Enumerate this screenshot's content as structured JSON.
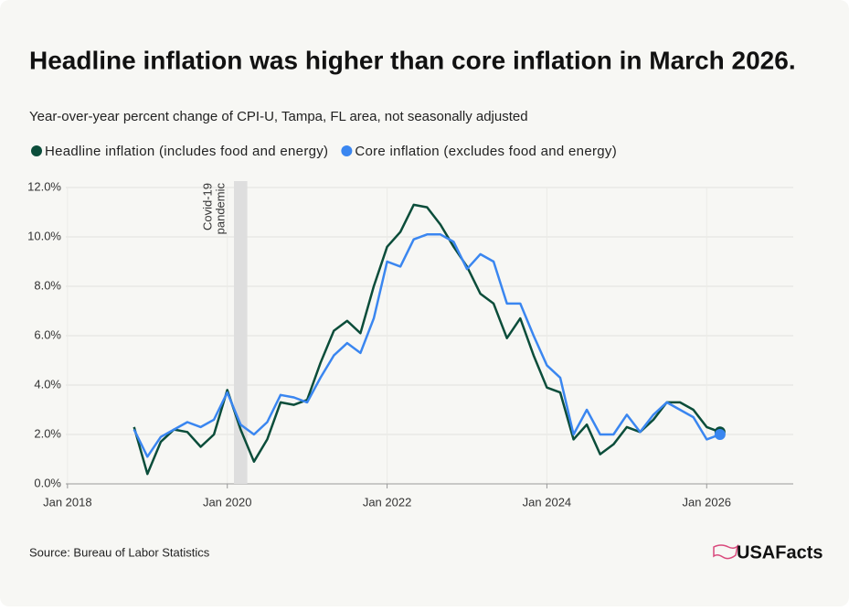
{
  "chart_data": {
    "type": "line",
    "title": "Headline inflation was higher than core inflation in March 2026.",
    "subtitle": "Year-over-year percent change of CPI-U, Tampa, FL area, not seasonally adjusted",
    "source": "Source: Bureau of Labor Statistics",
    "brand": "USAFacts",
    "annotation": {
      "lines": [
        "Covid-19",
        "pandemic"
      ],
      "start": "2020-02",
      "end": "2020-04"
    },
    "x": [
      "2018-11",
      "2019-01",
      "2019-03",
      "2019-05",
      "2019-07",
      "2019-09",
      "2019-11",
      "2020-01",
      "2020-03",
      "2020-05",
      "2020-07",
      "2020-09",
      "2020-11",
      "2021-01",
      "2021-03",
      "2021-05",
      "2021-07",
      "2021-09",
      "2021-11",
      "2022-01",
      "2022-03",
      "2022-05",
      "2022-07",
      "2022-09",
      "2022-11",
      "2023-01",
      "2023-03",
      "2023-05",
      "2023-07",
      "2023-09",
      "2023-11",
      "2024-01",
      "2024-03",
      "2024-05",
      "2024-07",
      "2024-09",
      "2024-11",
      "2025-01",
      "2025-03",
      "2025-05",
      "2025-07",
      "2025-09",
      "2025-11",
      "2026-01",
      "2026-03"
    ],
    "series": [
      {
        "name": "Headline inflation (includes food and energy)",
        "color": "#0b4d3a",
        "values": [
          2.3,
          0.4,
          1.7,
          2.2,
          2.1,
          1.5,
          2.0,
          3.8,
          2.2,
          0.9,
          1.8,
          3.3,
          3.2,
          3.4,
          4.9,
          6.2,
          6.6,
          6.1,
          8.0,
          9.6,
          10.2,
          11.3,
          11.2,
          10.5,
          9.6,
          8.8,
          7.7,
          7.3,
          5.9,
          6.7,
          5.2,
          3.9,
          3.7,
          1.8,
          2.4,
          1.2,
          1.6,
          2.3,
          2.1,
          2.6,
          3.3,
          3.3,
          3.0,
          2.3,
          2.1
        ]
      },
      {
        "name": "Core inflation (excludes food and energy)",
        "color": "#3a86f0",
        "values": [
          2.2,
          1.1,
          1.9,
          2.2,
          2.5,
          2.3,
          2.6,
          3.7,
          2.4,
          2.0,
          2.5,
          3.6,
          3.5,
          3.3,
          4.3,
          5.2,
          5.7,
          5.3,
          6.7,
          9.0,
          8.8,
          9.9,
          10.1,
          10.1,
          9.8,
          8.7,
          9.3,
          9.0,
          7.3,
          7.3,
          6.0,
          4.8,
          4.3,
          2.0,
          3.0,
          2.0,
          2.0,
          2.8,
          2.1,
          2.8,
          3.3,
          3.0,
          2.7,
          1.8,
          2.0
        ]
      }
    ],
    "xlim": [
      "2017-10",
      "2027-02"
    ],
    "xticks": [
      {
        "value": "2018-01",
        "label": "Jan 2018"
      },
      {
        "value": "2020-01",
        "label": "Jan 2020"
      },
      {
        "value": "2022-01",
        "label": "Jan 2022"
      },
      {
        "value": "2024-01",
        "label": "Jan 2024"
      },
      {
        "value": "2026-01",
        "label": "Jan 2026"
      }
    ],
    "ylim": [
      0,
      12
    ],
    "yticks": [
      {
        "value": 0,
        "label": "0.0%"
      },
      {
        "value": 2,
        "label": "2.0%"
      },
      {
        "value": 4,
        "label": "4.0%"
      },
      {
        "value": 6,
        "label": "6.0%"
      },
      {
        "value": 8,
        "label": "8.0%"
      },
      {
        "value": 10,
        "label": "10.0%"
      },
      {
        "value": 12,
        "label": "12.0%"
      }
    ],
    "grid": true
  }
}
